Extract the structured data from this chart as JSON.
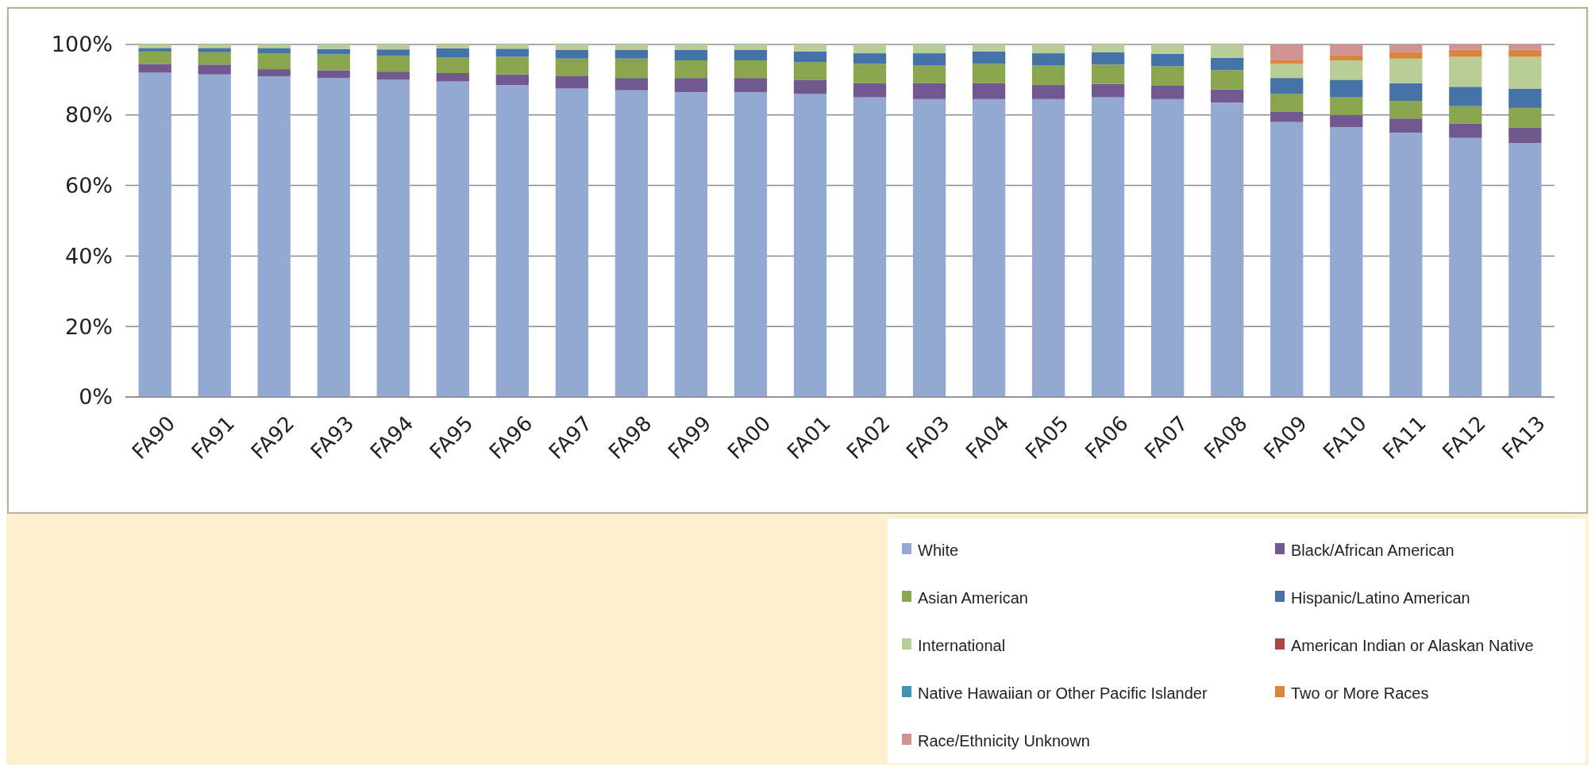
{
  "chart_data": {
    "type": "bar",
    "stacked": true,
    "categories": [
      "FA90",
      "FA91",
      "FA92",
      "FA93",
      "FA94",
      "FA95",
      "FA96",
      "FA97",
      "FA98",
      "FA99",
      "FA00",
      "FA01",
      "FA02",
      "FA03",
      "FA04",
      "FA05",
      "FA06",
      "FA07",
      "FA08",
      "FA09",
      "FA10",
      "FA11",
      "FA12",
      "FA13"
    ],
    "ylim": [
      0,
      100
    ],
    "yticks": [
      {
        "value": 0,
        "label": "0%"
      },
      {
        "value": 20,
        "label": "20%"
      },
      {
        "value": 40,
        "label": "40%"
      },
      {
        "value": 60,
        "label": "60%"
      },
      {
        "value": 80,
        "label": "80%"
      },
      {
        "value": 100,
        "label": "100%"
      }
    ],
    "grid": "y",
    "legend": "bottom right",
    "series": [
      {
        "name": "White",
        "color": "#93a9d1",
        "values": [
          92,
          91.5,
          91,
          90.5,
          90,
          89.5,
          88.5,
          87.5,
          87,
          86.5,
          86.5,
          86,
          85,
          84.5,
          84.5,
          84.5,
          85,
          84.5,
          83.5,
          78,
          76.5,
          75,
          73.5,
          72
        ]
      },
      {
        "name": "Black/African American",
        "color": "#71588f",
        "values": [
          2.5,
          2.8,
          2,
          2.2,
          2.3,
          2.4,
          3,
          3.5,
          3.5,
          4,
          4,
          4,
          4,
          4.5,
          4.5,
          4,
          3.8,
          3.8,
          3.7,
          3,
          3.5,
          4,
          4,
          4.5
        ]
      },
      {
        "name": "Asian American",
        "color": "#89a54e",
        "values": [
          3.5,
          3.5,
          4.5,
          4.5,
          4.5,
          4.5,
          5,
          5,
          5.5,
          5,
          5,
          5,
          5.5,
          5,
          5.5,
          5.5,
          5.5,
          5.5,
          5.5,
          5,
          5,
          5,
          5,
          5.5
        ]
      },
      {
        "name": "Hispanic/Latino American",
        "color": "#4572a7",
        "values": [
          1,
          1.2,
          1.5,
          1.5,
          1.8,
          2.5,
          2.3,
          2.5,
          2.5,
          3,
          3,
          3,
          3,
          3.5,
          3.5,
          3.5,
          3.5,
          3.5,
          3.5,
          4.5,
          5,
          5,
          5.5,
          5.5
        ]
      },
      {
        "name": "International",
        "color": "#b9cd96",
        "values": [
          1,
          1,
          1,
          1.3,
          1.4,
          1.1,
          1.2,
          1.5,
          1.5,
          1.5,
          1.5,
          2,
          2.5,
          2.5,
          2,
          2.5,
          2.2,
          2.7,
          3.8,
          4,
          5.5,
          7,
          8.5,
          9
        ]
      },
      {
        "name": "American Indian or Alaskan Native",
        "color": "#aa4643",
        "values": [
          null,
          null,
          null,
          null,
          null,
          null,
          null,
          null,
          null,
          null,
          null,
          null,
          null,
          null,
          null,
          null,
          null,
          null,
          null,
          null,
          null,
          null,
          null,
          null
        ]
      },
      {
        "name": "Native Hawaiian or Other Pacific Islander",
        "color": "#3d96ae",
        "values": [
          null,
          null,
          null,
          null,
          null,
          null,
          null,
          null,
          null,
          null,
          null,
          null,
          null,
          null,
          null,
          null,
          null,
          null,
          null,
          null,
          null,
          null,
          null,
          null
        ]
      },
      {
        "name": "Two or More Races",
        "color": "#db843d",
        "values": [
          null,
          null,
          null,
          null,
          null,
          null,
          null,
          null,
          null,
          null,
          null,
          null,
          null,
          null,
          null,
          null,
          null,
          null,
          null,
          1,
          1.5,
          1.8,
          2,
          2
        ]
      },
      {
        "name": "Race/Ethnicity Unknown",
        "color": "#d09392",
        "values": [
          null,
          null,
          null,
          null,
          null,
          null,
          null,
          null,
          null,
          null,
          null,
          null,
          null,
          null,
          null,
          null,
          null,
          null,
          null,
          4.5,
          3,
          2.2,
          1.5,
          1.5
        ]
      }
    ]
  }
}
